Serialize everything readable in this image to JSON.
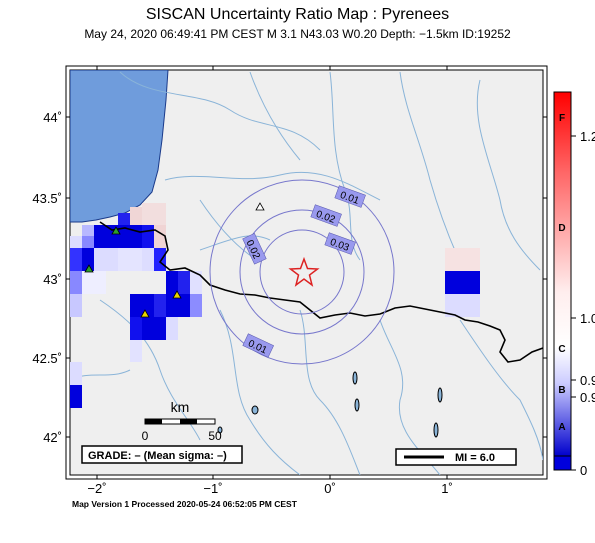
{
  "header": {
    "title": "SISCAN Uncertainty Ratio Map : Pyrenees",
    "subtitle": "May 24, 2020 06:49:41 PM CEST   M 3.1   N43.03 W0.20   Depth: −1.5km   ID:19252"
  },
  "axes": {
    "lat_labels": [
      "44˚",
      "43.5˚",
      "43˚",
      "42.5˚",
      "42˚"
    ],
    "lon_labels": [
      "−2˚",
      "−1˚",
      "0˚",
      "1˚"
    ]
  },
  "contours": {
    "labels": [
      "0.01",
      "0.02",
      "0.03",
      "0.02",
      "0.01"
    ]
  },
  "scale_bar": {
    "unit": "km",
    "start": "0",
    "end": "50"
  },
  "grade_box": {
    "text": "GRADE: – (Mean sigma: –)"
  },
  "mi_legend": {
    "text": "MI = 6.0"
  },
  "colorbar": {
    "grade_letters": [
      "F",
      "D",
      "C",
      "B",
      "A"
    ],
    "value_labels": [
      "1.2",
      "1.0",
      "0.9",
      "0.9",
      "0"
    ],
    "colors": {
      "top": "#ff0000",
      "mid": "#ffffff",
      "bottom": "#0000dd"
    }
  },
  "epicenter": {
    "lat": 43.03,
    "lon": -0.2,
    "icon": "star-icon",
    "color": "#dd2222"
  },
  "stations": {
    "icon": "triangle-icon",
    "colors": [
      "#2e9e2e",
      "#e8d400",
      "#ffffff"
    ]
  },
  "colors": {
    "sea": "#6f9cdc",
    "land": "#efefef",
    "rivers": "#8ab4d8",
    "borders": "#000000",
    "contours": "#7777cc"
  },
  "footer": {
    "text": "Map Version 1 Processed 2020-05-24 06:52:05 PM CEST"
  }
}
